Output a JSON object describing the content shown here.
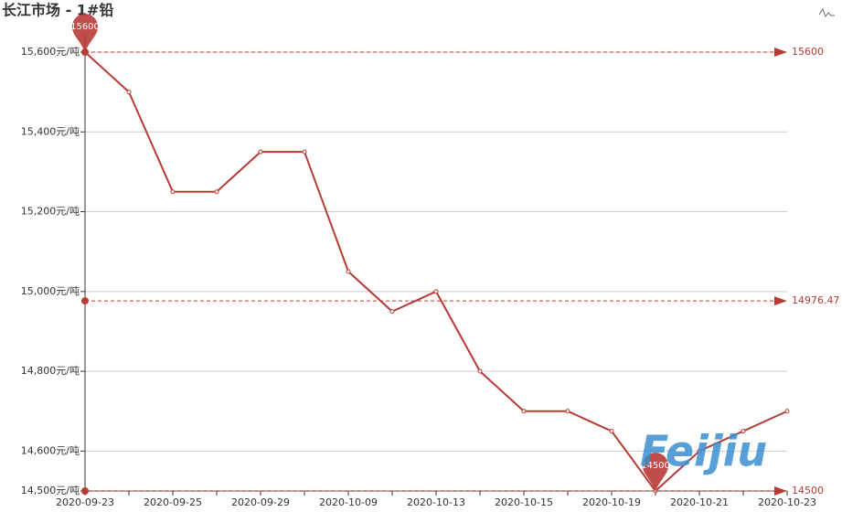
{
  "chart_data": {
    "type": "line",
    "title": "长江市场 - 1#铅",
    "categories": [
      "2020-09-23",
      null,
      "2020-09-25",
      null,
      "2020-09-29",
      null,
      "2020-10-09",
      null,
      "2020-10-13",
      null,
      "2020-10-15",
      null,
      "2020-10-19",
      null,
      "2020-10-21",
      null,
      "2020-10-23"
    ],
    "series": [
      {
        "name": "1#铅",
        "color": "#b83a35",
        "values": [
          15600,
          15500,
          15250,
          15250,
          15350,
          15350,
          15050,
          14950,
          15000,
          14800,
          14700,
          14700,
          14650,
          14500,
          14600,
          14650,
          14700
        ]
      }
    ],
    "ylim": [
      14500,
      15600
    ],
    "yticks": [
      {
        "value": 14500,
        "label": "14,500元/吨"
      },
      {
        "value": 14600,
        "label": "14,600元/吨"
      },
      {
        "value": 14800,
        "label": "14,800元/吨"
      },
      {
        "value": 15000,
        "label": "15,000元/吨"
      },
      {
        "value": 15200,
        "label": "15,200元/吨"
      },
      {
        "value": 15400,
        "label": "15,400元/吨"
      },
      {
        "value": 15600,
        "label": "15,600元/吨"
      }
    ],
    "grid": true,
    "mark_lines": [
      15600,
      14976.47,
      14500
    ],
    "mark_points": [
      15600,
      14500
    ],
    "watermark": "Feijiu"
  }
}
